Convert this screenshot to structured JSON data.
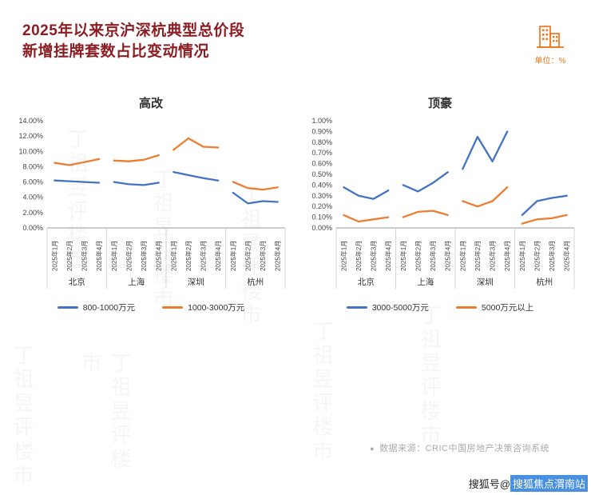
{
  "header": {
    "title_line1": "2025年以来京沪深杭典型总价段",
    "title_line2": "新增挂牌套数占比变动情况",
    "unit_label": "单位：%"
  },
  "footer": {
    "bullet": "●",
    "source": "数据来源：CRIC中国房地产决策咨询系统"
  },
  "corner_watermark": {
    "prefix": "搜狐号@",
    "name": "搜狐焦点渭南站"
  },
  "page_watermark": "丁祖昱评楼市",
  "colors": {
    "title_red": "#8B1E23",
    "accent_orange": "#E87722",
    "series_blue": "#4472C4",
    "series_orange": "#ED7D31"
  },
  "chart_data": [
    {
      "type": "line",
      "title": "高改",
      "cities": [
        "北京",
        "上海",
        "深圳",
        "杭州"
      ],
      "x_labels": [
        "2025年1月",
        "2025年2月",
        "2025年3月",
        "2025年4月"
      ],
      "ylim": [
        0,
        14
      ],
      "ytick_step": 2,
      "ytick_suffix": "%",
      "grid": false,
      "legend_position": "bottom",
      "series": [
        {
          "name": "800-1000万元",
          "color": "#4472C4",
          "values": [
            [
              6.2,
              6.1,
              6.0,
              5.9
            ],
            [
              6.0,
              5.7,
              5.6,
              5.9
            ],
            [
              7.3,
              6.9,
              6.5,
              6.2
            ],
            [
              4.6,
              3.2,
              3.5,
              3.4
            ]
          ]
        },
        {
          "name": "1000-3000万元",
          "color": "#ED7D31",
          "values": [
            [
              8.5,
              8.2,
              8.6,
              9.0
            ],
            [
              8.8,
              8.7,
              8.9,
              9.5
            ],
            [
              10.2,
              11.7,
              10.6,
              10.5
            ],
            [
              6.0,
              5.2,
              5.0,
              5.3
            ]
          ]
        }
      ]
    },
    {
      "type": "line",
      "title": "顶豪",
      "cities": [
        "北京",
        "上海",
        "深圳",
        "杭州"
      ],
      "x_labels": [
        "2025年1月",
        "2025年2月",
        "2025年3月",
        "2025年4月"
      ],
      "ylim": [
        0,
        1.0
      ],
      "ytick_step": 0.1,
      "ytick_suffix": "%",
      "grid": false,
      "legend_position": "bottom",
      "series": [
        {
          "name": "3000-5000万元",
          "color": "#4472C4",
          "values": [
            [
              0.38,
              0.3,
              0.27,
              0.35
            ],
            [
              0.4,
              0.34,
              0.42,
              0.52
            ],
            [
              0.55,
              0.85,
              0.62,
              0.9
            ],
            [
              0.12,
              0.25,
              0.28,
              0.3
            ]
          ]
        },
        {
          "name": "5000万元以上",
          "color": "#ED7D31",
          "values": [
            [
              0.12,
              0.06,
              0.08,
              0.1
            ],
            [
              0.1,
              0.15,
              0.16,
              0.12
            ],
            [
              0.25,
              0.2,
              0.25,
              0.38
            ],
            [
              0.04,
              0.08,
              0.09,
              0.12
            ]
          ]
        }
      ]
    }
  ]
}
